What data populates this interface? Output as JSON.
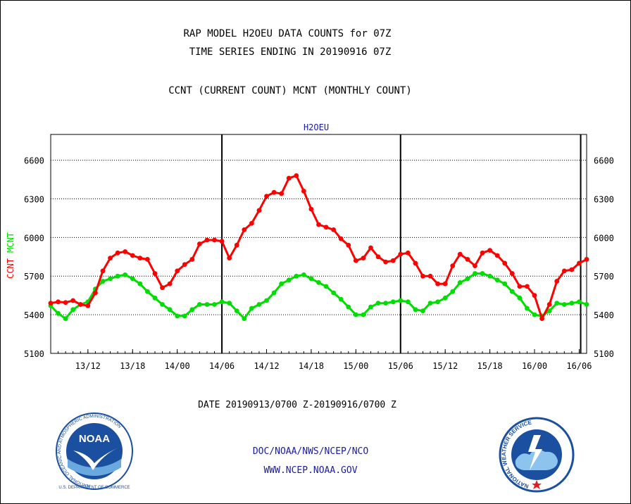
{
  "chart_data": {
    "type": "line",
    "title_lines": [
      "RAP MODEL H2OEU DATA COUNTS for 07Z",
      "TIME SERIES ENDING IN 20190916 07Z"
    ],
    "subtitle": "CCNT (CURRENT COUNT) MCNT (MONTHLY COUNT)",
    "panel_label": "H2OEU",
    "ylabel_series": [
      {
        "text": "CCNT",
        "color": "#ff0000"
      },
      {
        "text": "MCNT",
        "color": "#00dd00"
      }
    ],
    "date_range": "DATE 20190913/0700 Z-20190916/0700 Z",
    "ylim": [
      5100,
      6800
    ],
    "yticks": [
      5100,
      5400,
      5700,
      6000,
      6300,
      6600
    ],
    "xlim": [
      0,
      72
    ],
    "xticks": [
      {
        "x": 5,
        "label": "13/12"
      },
      {
        "x": 11,
        "label": "13/18"
      },
      {
        "x": 17,
        "label": "14/00"
      },
      {
        "x": 23,
        "label": "14/06"
      },
      {
        "x": 29,
        "label": "14/12"
      },
      {
        "x": 35,
        "label": "14/18"
      },
      {
        "x": 41,
        "label": "15/00"
      },
      {
        "x": 47,
        "label": "15/06"
      },
      {
        "x": 53,
        "label": "15/12"
      },
      {
        "x": 59,
        "label": "15/18"
      },
      {
        "x": 65,
        "label": "16/00"
      },
      {
        "x": 71,
        "label": "16/06"
      }
    ],
    "vlines": [
      23,
      47,
      71.2
    ],
    "grid": true,
    "series": [
      {
        "name": "CCNT",
        "color": "#ff0000",
        "values": [
          5490,
          5500,
          5495,
          5510,
          5480,
          5470,
          5570,
          5740,
          5840,
          5880,
          5890,
          5860,
          5840,
          5830,
          5720,
          5610,
          5640,
          5740,
          5790,
          5830,
          5950,
          5980,
          5980,
          5970,
          5840,
          5940,
          6060,
          6110,
          6210,
          6320,
          6350,
          6340,
          6460,
          6480,
          6360,
          6220,
          6100,
          6080,
          6060,
          5990,
          5940,
          5820,
          5840,
          5920,
          5850,
          5810,
          5820,
          5870,
          5880,
          5800,
          5700,
          5700,
          5640,
          5640,
          5780,
          5870,
          5830,
          5780,
          5880,
          5900,
          5860,
          5800,
          5720,
          5620,
          5620,
          5550,
          5370,
          5480,
          5660,
          5740,
          5750,
          5800,
          5830
        ]
      },
      {
        "name": "MCNT",
        "color": "#00dd00",
        "values": [
          5470,
          5410,
          5370,
          5440,
          5480,
          5500,
          5600,
          5660,
          5680,
          5700,
          5710,
          5680,
          5640,
          5580,
          5530,
          5480,
          5440,
          5390,
          5390,
          5440,
          5480,
          5480,
          5480,
          5500,
          5490,
          5430,
          5370,
          5450,
          5480,
          5510,
          5570,
          5640,
          5670,
          5700,
          5710,
          5680,
          5650,
          5620,
          5570,
          5520,
          5460,
          5400,
          5400,
          5460,
          5490,
          5490,
          5500,
          5510,
          5500,
          5440,
          5430,
          5490,
          5500,
          5530,
          5580,
          5650,
          5680,
          5720,
          5720,
          5700,
          5670,
          5640,
          5580,
          5530,
          5450,
          5400,
          5390,
          5430,
          5490,
          5480,
          5490,
          5500,
          5480
        ]
      }
    ]
  },
  "footer": {
    "line1": "DOC/NOAA/NWS/NCEP/NCO",
    "line2": "WWW.NCEP.NOAA.GOV"
  },
  "logos": {
    "left": {
      "name": "NOAA",
      "ring_text": "NATIONAL OCEANIC AND ATMOSPHERIC ADMINISTRATION",
      "bottom_text": "U.S. DEPARTMENT OF COMMERCE"
    },
    "right": {
      "ring_text": "NATIONAL WEATHER SERVICE"
    }
  },
  "colors": {
    "ccnt": "#ff0000",
    "mcnt": "#00dd00",
    "footer_blue": "#1a1aa8"
  }
}
